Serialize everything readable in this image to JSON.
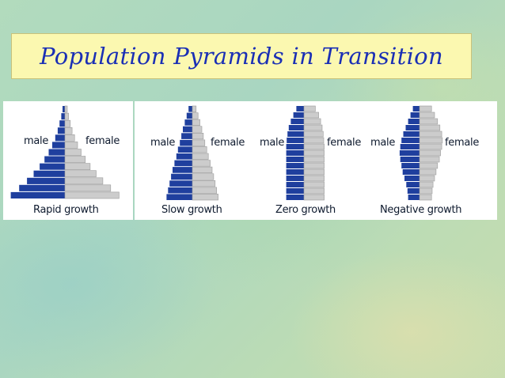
{
  "title": "Population Pyramids in Transition",
  "colors": {
    "male": "#1f3f9e",
    "female": "#cccccc",
    "title": "#1a2fb5",
    "title_bg": "#fbf8b0"
  },
  "chart_data": [
    {
      "type": "bar",
      "caption": "Rapid growth",
      "labels": {
        "left": "male",
        "right": "female"
      },
      "male": [
        0.04,
        0.06,
        0.09,
        0.12,
        0.16,
        0.21,
        0.27,
        0.34,
        0.42,
        0.52,
        0.63,
        0.76,
        0.9
      ],
      "female": [
        0.04,
        0.06,
        0.09,
        0.12,
        0.16,
        0.21,
        0.27,
        0.34,
        0.42,
        0.52,
        0.63,
        0.76,
        0.9
      ]
    },
    {
      "type": "bar",
      "caption": "Slow growth",
      "labels": {
        "left": "male",
        "right": "female"
      },
      "male": [
        0.1,
        0.15,
        0.2,
        0.25,
        0.29,
        0.33,
        0.38,
        0.42,
        0.47,
        0.52,
        0.56,
        0.6,
        0.64,
        0.68
      ],
      "female": [
        0.1,
        0.15,
        0.2,
        0.25,
        0.29,
        0.33,
        0.38,
        0.42,
        0.47,
        0.52,
        0.56,
        0.6,
        0.64,
        0.68
      ]
    },
    {
      "type": "bar",
      "caption": "Zero growth",
      "labels": {
        "left": "male",
        "right": "female"
      },
      "male": [
        0.3,
        0.42,
        0.52,
        0.6,
        0.65,
        0.68,
        0.7,
        0.7,
        0.7,
        0.7,
        0.7,
        0.7,
        0.7,
        0.7,
        0.7
      ],
      "female": [
        0.45,
        0.58,
        0.66,
        0.72,
        0.76,
        0.78,
        0.8,
        0.8,
        0.8,
        0.8,
        0.8,
        0.8,
        0.8,
        0.8,
        0.8
      ]
    },
    {
      "type": "bar",
      "caption": "Negative growth",
      "labels": {
        "left": "male",
        "right": "female"
      },
      "male": [
        0.22,
        0.3,
        0.38,
        0.46,
        0.54,
        0.6,
        0.64,
        0.66,
        0.64,
        0.6,
        0.56,
        0.5,
        0.44,
        0.4,
        0.38
      ],
      "female": [
        0.4,
        0.5,
        0.6,
        0.68,
        0.74,
        0.76,
        0.74,
        0.7,
        0.66,
        0.6,
        0.55,
        0.5,
        0.45,
        0.42,
        0.4
      ]
    }
  ]
}
